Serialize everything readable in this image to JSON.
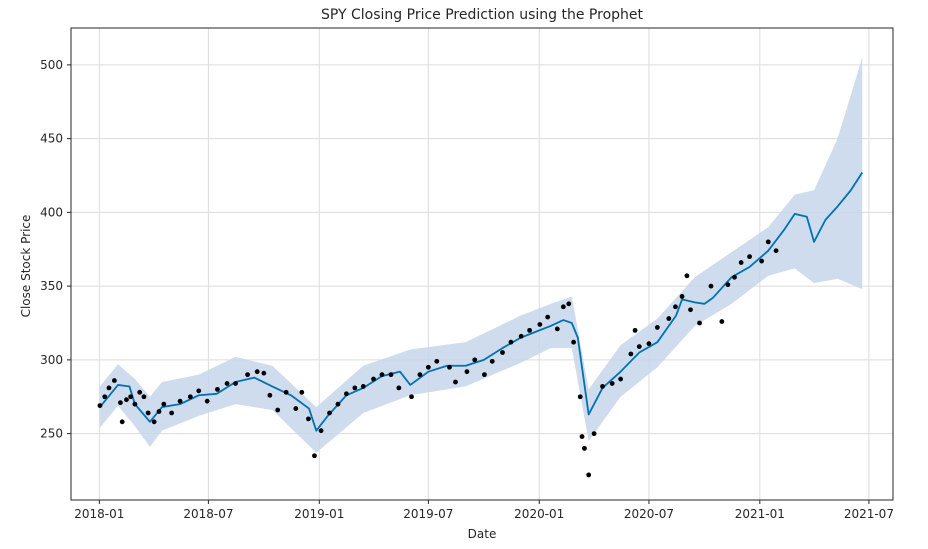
{
  "chart_data": {
    "type": "line",
    "title": "SPY Closing Price Prediction using the Prophet",
    "xlabel": "Date",
    "ylabel": "Close Stock Price",
    "xlim": [
      "2017-11-15",
      "2021-08-10"
    ],
    "ylim": [
      205,
      525
    ],
    "grid": true,
    "x_ticks": [
      "2018-01",
      "2018-07",
      "2019-01",
      "2019-07",
      "2020-01",
      "2020-07",
      "2021-01",
      "2021-07"
    ],
    "y_ticks": [
      250,
      300,
      350,
      400,
      450,
      500
    ],
    "colors": {
      "forecast": "#0072B2",
      "band": "#c5d6ea",
      "points": "#000000",
      "grid": "#dcdcdc"
    },
    "series": [
      {
        "kind": "forecast",
        "x": [
          "2018-01-02",
          "2018-02-01",
          "2018-02-20",
          "2018-03-01",
          "2018-03-26",
          "2018-04-15",
          "2018-05-15",
          "2018-06-15",
          "2018-07-15",
          "2018-08-15",
          "2018-09-15",
          "2018-10-15",
          "2018-11-15",
          "2018-12-15",
          "2018-12-27",
          "2019-01-15",
          "2019-02-15",
          "2019-03-15",
          "2019-04-15",
          "2019-05-15",
          "2019-06-01",
          "2019-07-01",
          "2019-08-01",
          "2019-09-01",
          "2019-10-01",
          "2019-11-01",
          "2019-12-01",
          "2020-01-01",
          "2020-01-20",
          "2020-02-10",
          "2020-02-24",
          "2020-03-05",
          "2020-03-23",
          "2020-04-15",
          "2020-05-15",
          "2020-06-15",
          "2020-07-15",
          "2020-08-15",
          "2020-08-25",
          "2020-09-15",
          "2020-10-01",
          "2020-10-15",
          "2020-11-15",
          "2020-12-15",
          "2021-01-15",
          "2021-02-10",
          "2021-02-28",
          "2021-03-20",
          "2021-04-01",
          "2021-04-20",
          "2021-05-10",
          "2021-06-01",
          "2021-06-20"
        ],
        "values": [
          268,
          283,
          282,
          270,
          258,
          268,
          270,
          276,
          277,
          285,
          288,
          282,
          276,
          267,
          252,
          262,
          276,
          281,
          289,
          292,
          283,
          292,
          296,
          296,
          300,
          308,
          315,
          320,
          323,
          327,
          325,
          315,
          263,
          281,
          292,
          305,
          312,
          330,
          341,
          339,
          338,
          342,
          356,
          363,
          374,
          388,
          399,
          397,
          380,
          395,
          404,
          415,
          427
        ]
      },
      {
        "kind": "uncertainty_upper",
        "x": [
          "2018-01-02",
          "2018-02-01",
          "2018-03-01",
          "2018-03-26",
          "2018-04-15",
          "2018-06-15",
          "2018-08-15",
          "2018-10-15",
          "2018-12-27",
          "2019-03-15",
          "2019-06-01",
          "2019-09-01",
          "2019-12-01",
          "2020-01-20",
          "2020-02-24",
          "2020-03-23",
          "2020-05-15",
          "2020-07-15",
          "2020-09-15",
          "2020-11-15",
          "2021-01-15",
          "2021-02-28",
          "2021-04-01",
          "2021-05-10",
          "2021-06-20"
        ],
        "values": [
          282,
          297,
          287,
          275,
          285,
          290,
          302,
          296,
          268,
          296,
          307,
          312,
          330,
          338,
          343,
          280,
          310,
          328,
          356,
          373,
          390,
          412,
          415,
          450,
          505
        ]
      },
      {
        "kind": "uncertainty_lower",
        "x": [
          "2018-01-02",
          "2018-02-01",
          "2018-03-01",
          "2018-03-26",
          "2018-04-15",
          "2018-06-15",
          "2018-08-15",
          "2018-10-15",
          "2018-12-27",
          "2019-03-15",
          "2019-06-01",
          "2019-09-01",
          "2019-12-01",
          "2020-01-20",
          "2020-02-24",
          "2020-03-23",
          "2020-05-15",
          "2020-07-15",
          "2020-09-15",
          "2020-11-15",
          "2021-01-15",
          "2021-02-28",
          "2021-04-01",
          "2021-05-10",
          "2021-06-20"
        ],
        "values": [
          254,
          269,
          255,
          241,
          252,
          262,
          270,
          266,
          237,
          264,
          276,
          282,
          298,
          308,
          308,
          245,
          275,
          295,
          323,
          338,
          357,
          362,
          352,
          355,
          348
        ]
      },
      {
        "kind": "observed",
        "x": [
          "2018-01-02",
          "2018-01-10",
          "2018-01-17",
          "2018-01-26",
          "2018-02-05",
          "2018-02-08",
          "2018-02-15",
          "2018-02-22",
          "2018-03-01",
          "2018-03-09",
          "2018-03-16",
          "2018-03-23",
          "2018-04-02",
          "2018-04-10",
          "2018-04-18",
          "2018-05-01",
          "2018-05-15",
          "2018-06-01",
          "2018-06-15",
          "2018-06-29",
          "2018-07-16",
          "2018-08-01",
          "2018-08-15",
          "2018-09-04",
          "2018-09-20",
          "2018-10-01",
          "2018-10-11",
          "2018-10-24",
          "2018-11-07",
          "2018-11-23",
          "2018-12-03",
          "2018-12-14",
          "2018-12-24",
          "2019-01-04",
          "2019-01-18",
          "2019-02-01",
          "2019-02-15",
          "2019-03-01",
          "2019-03-15",
          "2019-04-01",
          "2019-04-15",
          "2019-04-30",
          "2019-05-13",
          "2019-06-03",
          "2019-06-17",
          "2019-07-01",
          "2019-07-15",
          "2019-08-05",
          "2019-08-15",
          "2019-09-03",
          "2019-09-16",
          "2019-10-02",
          "2019-10-15",
          "2019-11-01",
          "2019-11-15",
          "2019-12-02",
          "2019-12-16",
          "2020-01-02",
          "2020-01-15",
          "2020-01-31",
          "2020-02-10",
          "2020-02-19",
          "2020-02-27",
          "2020-03-09",
          "2020-03-12",
          "2020-03-16",
          "2020-03-23",
          "2020-04-01",
          "2020-04-15",
          "2020-05-01",
          "2020-05-15",
          "2020-06-01",
          "2020-06-08",
          "2020-06-15",
          "2020-07-01",
          "2020-07-15",
          "2020-08-03",
          "2020-08-14",
          "2020-08-25",
          "2020-09-02",
          "2020-09-08",
          "2020-09-23",
          "2020-10-12",
          "2020-10-30",
          "2020-11-09",
          "2020-11-20",
          "2020-12-01",
          "2020-12-15",
          "2021-01-04",
          "2021-01-15",
          "2021-01-28"
        ],
        "values": [
          269,
          275,
          281,
          286,
          271,
          258,
          273,
          275,
          270,
          278,
          275,
          264,
          258,
          265,
          270,
          264,
          272,
          275,
          279,
          272,
          280,
          284,
          284,
          290,
          292,
          291,
          276,
          266,
          278,
          267,
          278,
          260,
          235,
          252,
          264,
          270,
          277,
          281,
          282,
          287,
          290,
          290,
          281,
          275,
          290,
          295,
          299,
          295,
          285,
          292,
          300,
          290,
          299,
          305,
          312,
          316,
          320,
          324,
          329,
          321,
          336,
          338,
          312,
          275,
          248,
          240,
          222,
          250,
          282,
          284,
          287,
          304,
          320,
          309,
          311,
          322,
          328,
          336,
          343,
          357,
          334,
          325,
          350,
          326,
          351,
          356,
          366,
          370,
          367,
          380,
          374
        ]
      }
    ]
  }
}
